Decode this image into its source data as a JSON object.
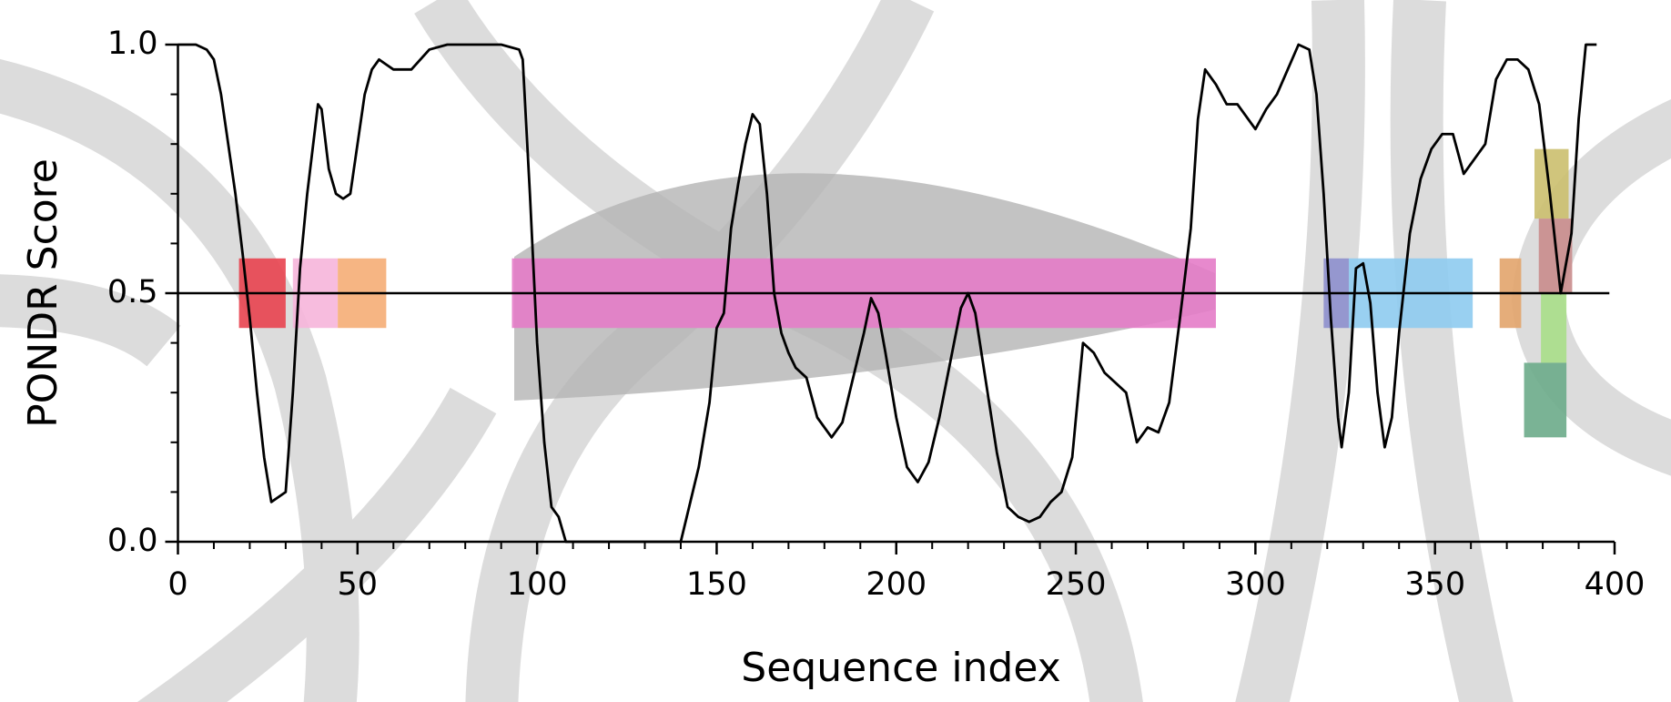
{
  "chart_data": {
    "type": "line",
    "xlabel": "Sequence index",
    "ylabel": "PONDR Score",
    "xlim": [
      0,
      400
    ],
    "ylim": [
      0,
      1
    ],
    "xticks": [
      0,
      50,
      100,
      150,
      200,
      250,
      300,
      350,
      400
    ],
    "xminorticks": [
      10,
      20,
      30,
      40,
      60,
      70,
      80,
      90,
      110,
      120,
      130,
      140,
      160,
      170,
      180,
      190,
      210,
      220,
      230,
      240,
      260,
      270,
      280,
      290,
      310,
      320,
      330,
      340,
      360,
      370,
      380,
      390
    ],
    "yticks": [
      {
        "value": 0,
        "label": "0.0"
      },
      {
        "value": 0.5,
        "label": "0.5"
      },
      {
        "value": 1,
        "label": "1.0"
      }
    ],
    "yminorticks": [
      0.1,
      0.2,
      0.3,
      0.4,
      0.6,
      0.7,
      0.8,
      0.9
    ],
    "threshold": 0.5,
    "color": "#000000",
    "x": [
      0,
      5,
      8,
      10,
      12,
      14,
      16,
      18,
      20,
      22,
      24,
      26,
      28,
      30,
      32,
      34,
      36,
      38,
      39,
      40,
      42,
      44,
      46,
      48,
      50,
      52,
      54,
      56,
      58,
      60,
      65,
      70,
      75,
      85,
      90,
      95,
      96,
      98,
      100,
      102,
      104,
      106,
      108,
      110,
      120,
      130,
      140,
      142,
      145,
      148,
      150,
      152,
      154,
      156,
      158,
      160,
      162,
      164,
      166,
      168,
      170,
      172,
      175,
      178,
      182,
      185,
      188,
      191,
      193,
      195,
      197,
      200,
      203,
      206,
      209,
      212,
      215,
      218,
      220,
      222,
      225,
      228,
      231,
      234,
      237,
      240,
      243,
      246,
      249,
      252,
      255,
      258,
      261,
      264,
      267,
      270,
      273,
      276,
      279,
      282,
      284,
      286,
      289,
      292,
      295,
      298,
      300,
      303,
      306,
      309,
      312,
      315,
      317,
      319,
      321,
      323,
      324,
      326,
      328,
      330,
      332,
      334,
      336,
      338,
      340,
      343,
      346,
      349,
      352,
      355,
      358,
      361,
      364,
      367,
      370,
      373,
      376,
      379,
      382,
      385,
      388,
      390,
      392,
      395
    ],
    "values": [
      1.0,
      1.0,
      0.99,
      0.97,
      0.9,
      0.8,
      0.7,
      0.58,
      0.45,
      0.3,
      0.17,
      0.08,
      0.09,
      0.1,
      0.3,
      0.55,
      0.7,
      0.82,
      0.88,
      0.87,
      0.75,
      0.7,
      0.69,
      0.7,
      0.8,
      0.9,
      0.95,
      0.97,
      0.96,
      0.95,
      0.95,
      0.99,
      1.0,
      1.0,
      1.0,
      0.99,
      0.97,
      0.7,
      0.4,
      0.2,
      0.07,
      0.05,
      0.0,
      0.0,
      0.0,
      0.0,
      0.0,
      0.06,
      0.15,
      0.28,
      0.43,
      0.46,
      0.63,
      0.72,
      0.8,
      0.86,
      0.84,
      0.7,
      0.5,
      0.42,
      0.38,
      0.35,
      0.33,
      0.25,
      0.21,
      0.24,
      0.33,
      0.42,
      0.49,
      0.46,
      0.38,
      0.25,
      0.15,
      0.12,
      0.16,
      0.25,
      0.36,
      0.47,
      0.5,
      0.46,
      0.32,
      0.18,
      0.07,
      0.05,
      0.04,
      0.05,
      0.08,
      0.1,
      0.17,
      0.4,
      0.38,
      0.34,
      0.32,
      0.3,
      0.2,
      0.23,
      0.22,
      0.28,
      0.45,
      0.63,
      0.85,
      0.95,
      0.92,
      0.88,
      0.88,
      0.85,
      0.83,
      0.87,
      0.9,
      0.95,
      1.0,
      0.99,
      0.9,
      0.7,
      0.45,
      0.25,
      0.19,
      0.3,
      0.55,
      0.56,
      0.48,
      0.3,
      0.19,
      0.25,
      0.42,
      0.62,
      0.73,
      0.79,
      0.82,
      0.82,
      0.74,
      0.77,
      0.8,
      0.93,
      0.97,
      0.97,
      0.95,
      0.88,
      0.7,
      0.5,
      0.62,
      0.85,
      1.0,
      1.0
    ],
    "regions": [
      {
        "start": 17,
        "end": 30,
        "low": 0.43,
        "high": 0.57,
        "color": "#e8424f"
      },
      {
        "start": 32,
        "end": 44.5,
        "low": 0.43,
        "high": 0.57,
        "color": "#f6b5da"
      },
      {
        "start": 44.5,
        "end": 58,
        "low": 0.43,
        "high": 0.57,
        "color": "#f5ad76"
      },
      {
        "start": 93,
        "end": 289,
        "low": 0.43,
        "high": 0.57,
        "color": "#e47cc8"
      },
      {
        "start": 319,
        "end": 326,
        "low": 0.43,
        "high": 0.57,
        "color": "#8d8fcd"
      },
      {
        "start": 326,
        "end": 360.5,
        "low": 0.43,
        "high": 0.57,
        "color": "#8ecbf0"
      },
      {
        "start": 368,
        "end": 374,
        "low": 0.43,
        "high": 0.57,
        "color": "#e2a46c"
      },
      {
        "start": 377.7,
        "end": 387.2,
        "low": 0.65,
        "high": 0.79,
        "color": "#cbbf6e"
      },
      {
        "start": 378.9,
        "end": 388.2,
        "low": 0.5,
        "high": 0.65,
        "color": "#c98c8c"
      },
      {
        "start": 379.5,
        "end": 386.6,
        "low": 0.36,
        "high": 0.5,
        "color": "#a8de88"
      },
      {
        "start": 374.8,
        "end": 386.6,
        "low": 0.21,
        "high": 0.36,
        "color": "#6cab8a"
      }
    ]
  }
}
